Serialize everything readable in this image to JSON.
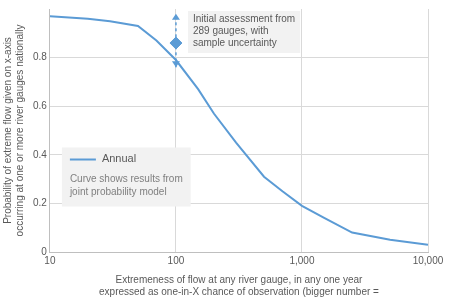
{
  "chart_data": {
    "type": "line",
    "log": "x",
    "x_label": [
      "Extremeness of flow at any river gauge, in any one year",
      "expressed as one-in-X chance of observation (bigger number ="
    ],
    "y_label": [
      "Probability of extreme flow given on x-axis",
      "occurring at one or more river gauges nationally"
    ],
    "xlim": [
      10,
      10000
    ],
    "xticks": [
      10,
      100,
      {
        "value": 1000,
        "label": "1,000"
      },
      {
        "value": 10000,
        "label": "10,000"
      }
    ],
    "ylim": [
      0,
      1
    ],
    "yticks": [
      0,
      0.2,
      0.4,
      0.6,
      0.8
    ],
    "grid": true,
    "legend": "left",
    "series": [
      {
        "name": "Annual",
        "type": "line",
        "color": "#5b9bd5",
        "line_style": "solid",
        "x": [
          10,
          20,
          30,
          50,
          70,
          100,
          150,
          200,
          300,
          500,
          700,
          1000,
          1500,
          2500,
          5000,
          10000
        ],
        "values": [
          0.97,
          0.96,
          0.95,
          0.93,
          0.87,
          0.79,
          0.67,
          0.57,
          0.45,
          0.31,
          0.25,
          0.19,
          0.14,
          0.08,
          0.05,
          0.03
        ]
      },
      {
        "type": "scatter",
        "color": "#5b9bd5",
        "marker": "diamond",
        "x": [
          100
        ],
        "values": [
          0.86
        ],
        "error_low": [
          0.76
        ],
        "error_high": [
          0.98
        ]
      }
    ],
    "annotations": [
      [
        "Initial assessment from",
        "289 gauges, with",
        "sample uncertainty"
      ],
      [
        "Curve shows results from",
        "joint probability model"
      ]
    ]
  }
}
